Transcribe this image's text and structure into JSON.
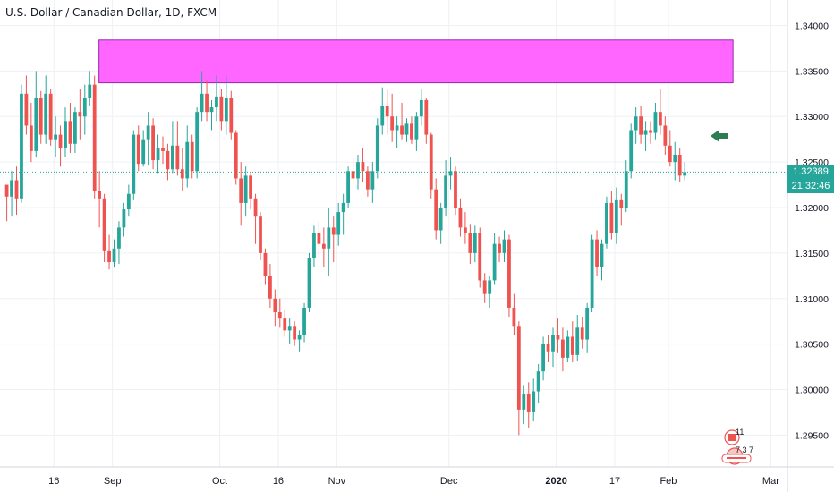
{
  "header": {
    "title": "U.S. Dollar / Canadian Dollar, 1D, FXCM"
  },
  "last_price": {
    "value": "1.32389",
    "countdown": "21:32:46",
    "color": "#26a69a"
  },
  "events": {
    "cad_count": "11",
    "usd_count": "7 3 7"
  },
  "colors": {
    "up": "#26a69a",
    "down": "#ef5350",
    "zone": "#ff66ff",
    "zone_border": "#9c27b0",
    "arrow": "#2e7d52",
    "grid": "#eef0f4"
  },
  "chart_data": {
    "type": "candlestick",
    "title": "U.S. Dollar / Canadian Dollar, 1D, FXCM",
    "ylim": [
      1.2915,
      1.3428
    ],
    "y_ticks": [
      "1.34000",
      "1.33500",
      "1.33000",
      "1.32500",
      "1.32000",
      "1.31500",
      "1.31000",
      "1.30500",
      "1.30000",
      "1.29500"
    ],
    "x_ticks": [
      {
        "label": "16",
        "i": 5
      },
      {
        "label": "Sep",
        "i": 17
      },
      {
        "label": "Oct",
        "i": 39
      },
      {
        "label": "16",
        "i": 51
      },
      {
        "label": "Nov",
        "i": 63
      },
      {
        "label": "Dec",
        "i": 86
      },
      {
        "label": "2020",
        "i": 108
      },
      {
        "label": "17",
        "i": 120
      },
      {
        "label": "Feb",
        "i": 131
      },
      {
        "label": "Mar",
        "i": 152
      }
    ],
    "resistance_zone": {
      "from_i": 17,
      "to_i": 147,
      "low": 1.3337,
      "high": 1.3384
    },
    "arrow_at_i": 142,
    "candles": [
      [
        1.3225,
        1.3225,
        1.3185,
        1.3212
      ],
      [
        1.3212,
        1.324,
        1.319,
        1.323
      ],
      [
        1.323,
        1.3245,
        1.3192,
        1.321
      ],
      [
        1.321,
        1.3335,
        1.3205,
        1.3325
      ],
      [
        1.3325,
        1.3345,
        1.328,
        1.329
      ],
      [
        1.329,
        1.3315,
        1.325,
        1.3262
      ],
      [
        1.3262,
        1.335,
        1.3255,
        1.332
      ],
      [
        1.332,
        1.3328,
        1.327,
        1.328
      ],
      [
        1.328,
        1.3345,
        1.327,
        1.3325
      ],
      [
        1.3325,
        1.333,
        1.3268,
        1.3275
      ],
      [
        1.3275,
        1.33,
        1.3255,
        1.328
      ],
      [
        1.328,
        1.329,
        1.3245,
        1.3265
      ],
      [
        1.3265,
        1.331,
        1.3255,
        1.3295
      ],
      [
        1.3295,
        1.3315,
        1.326,
        1.327
      ],
      [
        1.327,
        1.331,
        1.326,
        1.3305
      ],
      [
        1.3305,
        1.333,
        1.3275,
        1.33
      ],
      [
        1.33,
        1.3335,
        1.328,
        1.332
      ],
      [
        1.332,
        1.335,
        1.3312,
        1.3335
      ],
      [
        1.3335,
        1.3345,
        1.321,
        1.3218
      ],
      [
        1.3218,
        1.324,
        1.3178,
        1.321
      ],
      [
        1.321,
        1.3215,
        1.314,
        1.3152
      ],
      [
        1.3152,
        1.317,
        1.3132,
        1.314
      ],
      [
        1.314,
        1.3165,
        1.3134,
        1.3155
      ],
      [
        1.3155,
        1.3185,
        1.3138,
        1.3178
      ],
      [
        1.3178,
        1.3205,
        1.3168,
        1.3198
      ],
      [
        1.3198,
        1.3225,
        1.319,
        1.3215
      ],
      [
        1.3215,
        1.3285,
        1.3208,
        1.328
      ],
      [
        1.328,
        1.329,
        1.324,
        1.3248
      ],
      [
        1.3248,
        1.3285,
        1.3245,
        1.3275
      ],
      [
        1.3275,
        1.3305,
        1.3246,
        1.329
      ],
      [
        1.329,
        1.3298,
        1.3242,
        1.3252
      ],
      [
        1.3252,
        1.328,
        1.3238,
        1.3265
      ],
      [
        1.3265,
        1.3278,
        1.3248,
        1.3262
      ],
      [
        1.3262,
        1.327,
        1.323,
        1.3242
      ],
      [
        1.3242,
        1.3295,
        1.3238,
        1.3268
      ],
      [
        1.3268,
        1.3295,
        1.3235,
        1.3242
      ],
      [
        1.3242,
        1.3265,
        1.3218,
        1.3232
      ],
      [
        1.3232,
        1.329,
        1.3222,
        1.3272
      ],
      [
        1.3272,
        1.328,
        1.3232,
        1.324
      ],
      [
        1.324,
        1.331,
        1.3232,
        1.3305
      ],
      [
        1.3305,
        1.335,
        1.3295,
        1.3325
      ],
      [
        1.3325,
        1.334,
        1.3295,
        1.3305
      ],
      [
        1.3305,
        1.3318,
        1.3285,
        1.331
      ],
      [
        1.331,
        1.3345,
        1.3295,
        1.3322
      ],
      [
        1.3322,
        1.333,
        1.3285,
        1.3295
      ],
      [
        1.3295,
        1.3345,
        1.328,
        1.332
      ],
      [
        1.332,
        1.3328,
        1.3275,
        1.3282
      ],
      [
        1.3282,
        1.3285,
        1.3225,
        1.3232
      ],
      [
        1.3232,
        1.325,
        1.318,
        1.3205
      ],
      [
        1.3205,
        1.3245,
        1.319,
        1.3235
      ],
      [
        1.3235,
        1.3238,
        1.3198,
        1.321
      ],
      [
        1.321,
        1.3215,
        1.316,
        1.319
      ],
      [
        1.319,
        1.3195,
        1.3142,
        1.315
      ],
      [
        1.315,
        1.3155,
        1.3115,
        1.3125
      ],
      [
        1.3125,
        1.3138,
        1.309,
        1.31
      ],
      [
        1.31,
        1.311,
        1.307,
        1.3085
      ],
      [
        1.3085,
        1.31,
        1.3068,
        1.3078
      ],
      [
        1.3078,
        1.3088,
        1.3058,
        1.3065
      ],
      [
        1.3065,
        1.3078,
        1.305,
        1.307
      ],
      [
        1.307,
        1.3075,
        1.3048,
        1.3055
      ],
      [
        1.3055,
        1.3065,
        1.3042,
        1.306
      ],
      [
        1.306,
        1.3095,
        1.3052,
        1.309
      ],
      [
        1.309,
        1.315,
        1.3085,
        1.3145
      ],
      [
        1.3145,
        1.318,
        1.3135,
        1.3172
      ],
      [
        1.3172,
        1.3185,
        1.3148,
        1.316
      ],
      [
        1.316,
        1.3178,
        1.3135,
        1.3155
      ],
      [
        1.3155,
        1.32,
        1.3125,
        1.3178
      ],
      [
        1.3178,
        1.319,
        1.314,
        1.317
      ],
      [
        1.317,
        1.3205,
        1.3158,
        1.3195
      ],
      [
        1.3195,
        1.3215,
        1.317,
        1.3205
      ],
      [
        1.3205,
        1.3245,
        1.32,
        1.324
      ],
      [
        1.324,
        1.3255,
        1.3225,
        1.3232
      ],
      [
        1.3232,
        1.3258,
        1.322,
        1.325
      ],
      [
        1.325,
        1.3265,
        1.3228,
        1.324
      ],
      [
        1.324,
        1.3245,
        1.3212,
        1.322
      ],
      [
        1.322,
        1.325,
        1.3205,
        1.324
      ],
      [
        1.324,
        1.3298,
        1.3232,
        1.329
      ],
      [
        1.329,
        1.3332,
        1.328,
        1.3312
      ],
      [
        1.3312,
        1.333,
        1.328,
        1.33
      ],
      [
        1.33,
        1.3325,
        1.3272,
        1.3285
      ],
      [
        1.3285,
        1.33,
        1.3265,
        1.329
      ],
      [
        1.329,
        1.3315,
        1.3275,
        1.328
      ],
      [
        1.328,
        1.3298,
        1.3272,
        1.3292
      ],
      [
        1.3292,
        1.33,
        1.327,
        1.3275
      ],
      [
        1.3275,
        1.3305,
        1.3262,
        1.33
      ],
      [
        1.33,
        1.333,
        1.329,
        1.3318
      ],
      [
        1.3318,
        1.332,
        1.327,
        1.328
      ],
      [
        1.328,
        1.3282,
        1.321,
        1.322
      ],
      [
        1.322,
        1.3232,
        1.3165,
        1.3175
      ],
      [
        1.3175,
        1.3205,
        1.316,
        1.32
      ],
      [
        1.32,
        1.3252,
        1.319,
        1.3235
      ],
      [
        1.3235,
        1.3255,
        1.322,
        1.324
      ],
      [
        1.324,
        1.3245,
        1.3192,
        1.32
      ],
      [
        1.32,
        1.321,
        1.3168,
        1.3178
      ],
      [
        1.3178,
        1.3195,
        1.316,
        1.3172
      ],
      [
        1.3172,
        1.3182,
        1.3138,
        1.315
      ],
      [
        1.315,
        1.318,
        1.314,
        1.3172
      ],
      [
        1.3172,
        1.3178,
        1.3112,
        1.312
      ],
      [
        1.312,
        1.3128,
        1.3095,
        1.3105
      ],
      [
        1.3105,
        1.3125,
        1.309,
        1.312
      ],
      [
        1.312,
        1.3172,
        1.3115,
        1.316
      ],
      [
        1.316,
        1.3168,
        1.314,
        1.315
      ],
      [
        1.315,
        1.3175,
        1.314,
        1.3165
      ],
      [
        1.3165,
        1.317,
        1.308,
        1.309
      ],
      [
        1.309,
        1.3105,
        1.306,
        1.307
      ],
      [
        1.307,
        1.3075,
        1.295,
        1.2978
      ],
      [
        1.2978,
        1.3005,
        1.2962,
        1.2995
      ],
      [
        1.2995,
        1.3008,
        1.2958,
        1.2975
      ],
      [
        1.2975,
        1.3012,
        1.2965,
        1.2998
      ],
      [
        1.2998,
        1.3028,
        1.2985,
        1.302
      ],
      [
        1.302,
        1.3058,
        1.301,
        1.305
      ],
      [
        1.305,
        1.306,
        1.303,
        1.3042
      ],
      [
        1.3042,
        1.3068,
        1.3025,
        1.306
      ],
      [
        1.306,
        1.3078,
        1.304,
        1.3055
      ],
      [
        1.3055,
        1.3068,
        1.302,
        1.3035
      ],
      [
        1.3035,
        1.3065,
        1.303,
        1.3058
      ],
      [
        1.3058,
        1.3075,
        1.303,
        1.3038
      ],
      [
        1.3038,
        1.3082,
        1.3032,
        1.3068
      ],
      [
        1.3068,
        1.308,
        1.3045,
        1.3055
      ],
      [
        1.3055,
        1.3095,
        1.304,
        1.309
      ],
      [
        1.309,
        1.317,
        1.3085,
        1.3165
      ],
      [
        1.3165,
        1.3175,
        1.3125,
        1.3135
      ],
      [
        1.3135,
        1.3165,
        1.312,
        1.316
      ],
      [
        1.316,
        1.3212,
        1.3155,
        1.3205
      ],
      [
        1.3205,
        1.3218,
        1.3165,
        1.3172
      ],
      [
        1.3172,
        1.3222,
        1.316,
        1.3208
      ],
      [
        1.3208,
        1.3215,
        1.318,
        1.32
      ],
      [
        1.32,
        1.3252,
        1.3195,
        1.324
      ],
      [
        1.324,
        1.3292,
        1.3232,
        1.3285
      ],
      [
        1.3285,
        1.331,
        1.327,
        1.33
      ],
      [
        1.33,
        1.3312,
        1.327,
        1.328
      ],
      [
        1.328,
        1.3295,
        1.3262,
        1.3285
      ],
      [
        1.3285,
        1.3295,
        1.327,
        1.3282
      ],
      [
        1.3282,
        1.3315,
        1.3275,
        1.3305
      ],
      [
        1.3305,
        1.333,
        1.328,
        1.329
      ],
      [
        1.329,
        1.33,
        1.3258,
        1.3268
      ],
      [
        1.3268,
        1.3285,
        1.3245,
        1.325
      ],
      [
        1.325,
        1.3272,
        1.323,
        1.3258
      ],
      [
        1.3258,
        1.3265,
        1.3228,
        1.3235
      ],
      [
        1.3235,
        1.325,
        1.323,
        1.3239
      ]
    ]
  }
}
